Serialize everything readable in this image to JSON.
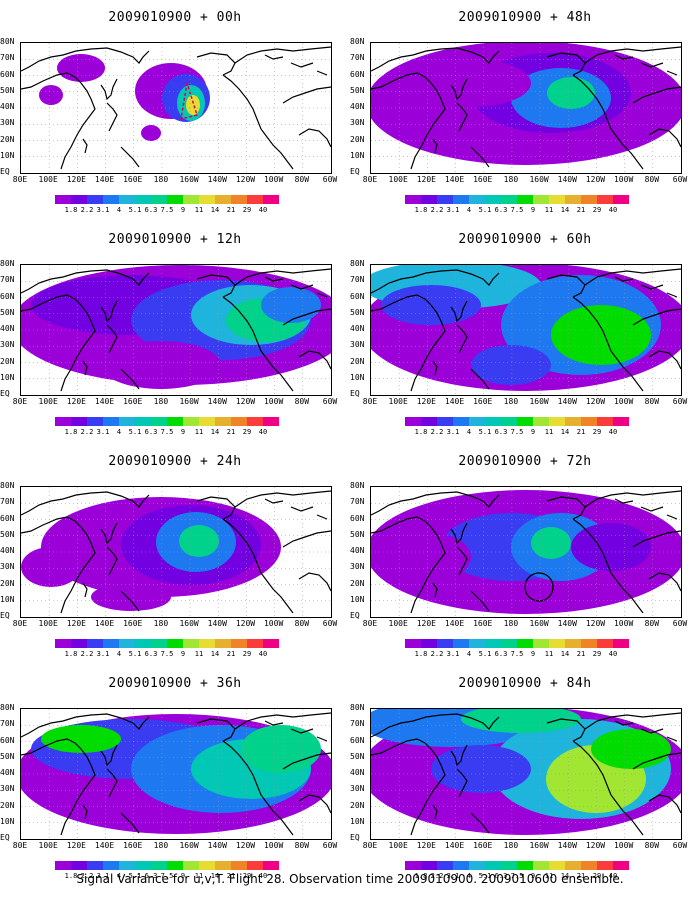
{
  "figure": {
    "caption": "Signal Variance for u,v,T. Flight 28. Observation time 2009010900. 2009010600 ensemble."
  },
  "panels": [
    {
      "title": "2009010900 + 00h",
      "intensity": 0
    },
    {
      "title": "2009010900 + 48h",
      "intensity": 4
    },
    {
      "title": "2009010900 + 12h",
      "intensity": 1
    },
    {
      "title": "2009010900 + 60h",
      "intensity": 5
    },
    {
      "title": "2009010900 + 24h",
      "intensity": 2
    },
    {
      "title": "2009010900 + 72h",
      "intensity": 6
    },
    {
      "title": "2009010900 + 36h",
      "intensity": 3
    },
    {
      "title": "2009010900 + 84h",
      "intensity": 7
    }
  ],
  "axes": {
    "lat_labels": [
      "80N",
      "70N",
      "60N",
      "50N",
      "40N",
      "30N",
      "20N",
      "10N",
      "EQ"
    ],
    "lon_labels": [
      "80E",
      "100E",
      "120E",
      "140E",
      "160E",
      "180",
      "160W",
      "140W",
      "120W",
      "100W",
      "80W",
      "60W"
    ]
  },
  "colorbar": {
    "labels": [
      "1.8",
      "2.2",
      "3.1",
      "4",
      "5.1",
      "6.3",
      "7.5",
      "9",
      "11",
      "14",
      "21",
      "29",
      "40"
    ],
    "colors": [
      "#9b00d8",
      "#7200e0",
      "#3a3cf2",
      "#1e78f0",
      "#1eb4dc",
      "#00c8b4",
      "#00d28c",
      "#00dc00",
      "#a0e632",
      "#e6dc32",
      "#e6af2d",
      "#f08228",
      "#fa3c3c",
      "#f00082"
    ]
  }
}
